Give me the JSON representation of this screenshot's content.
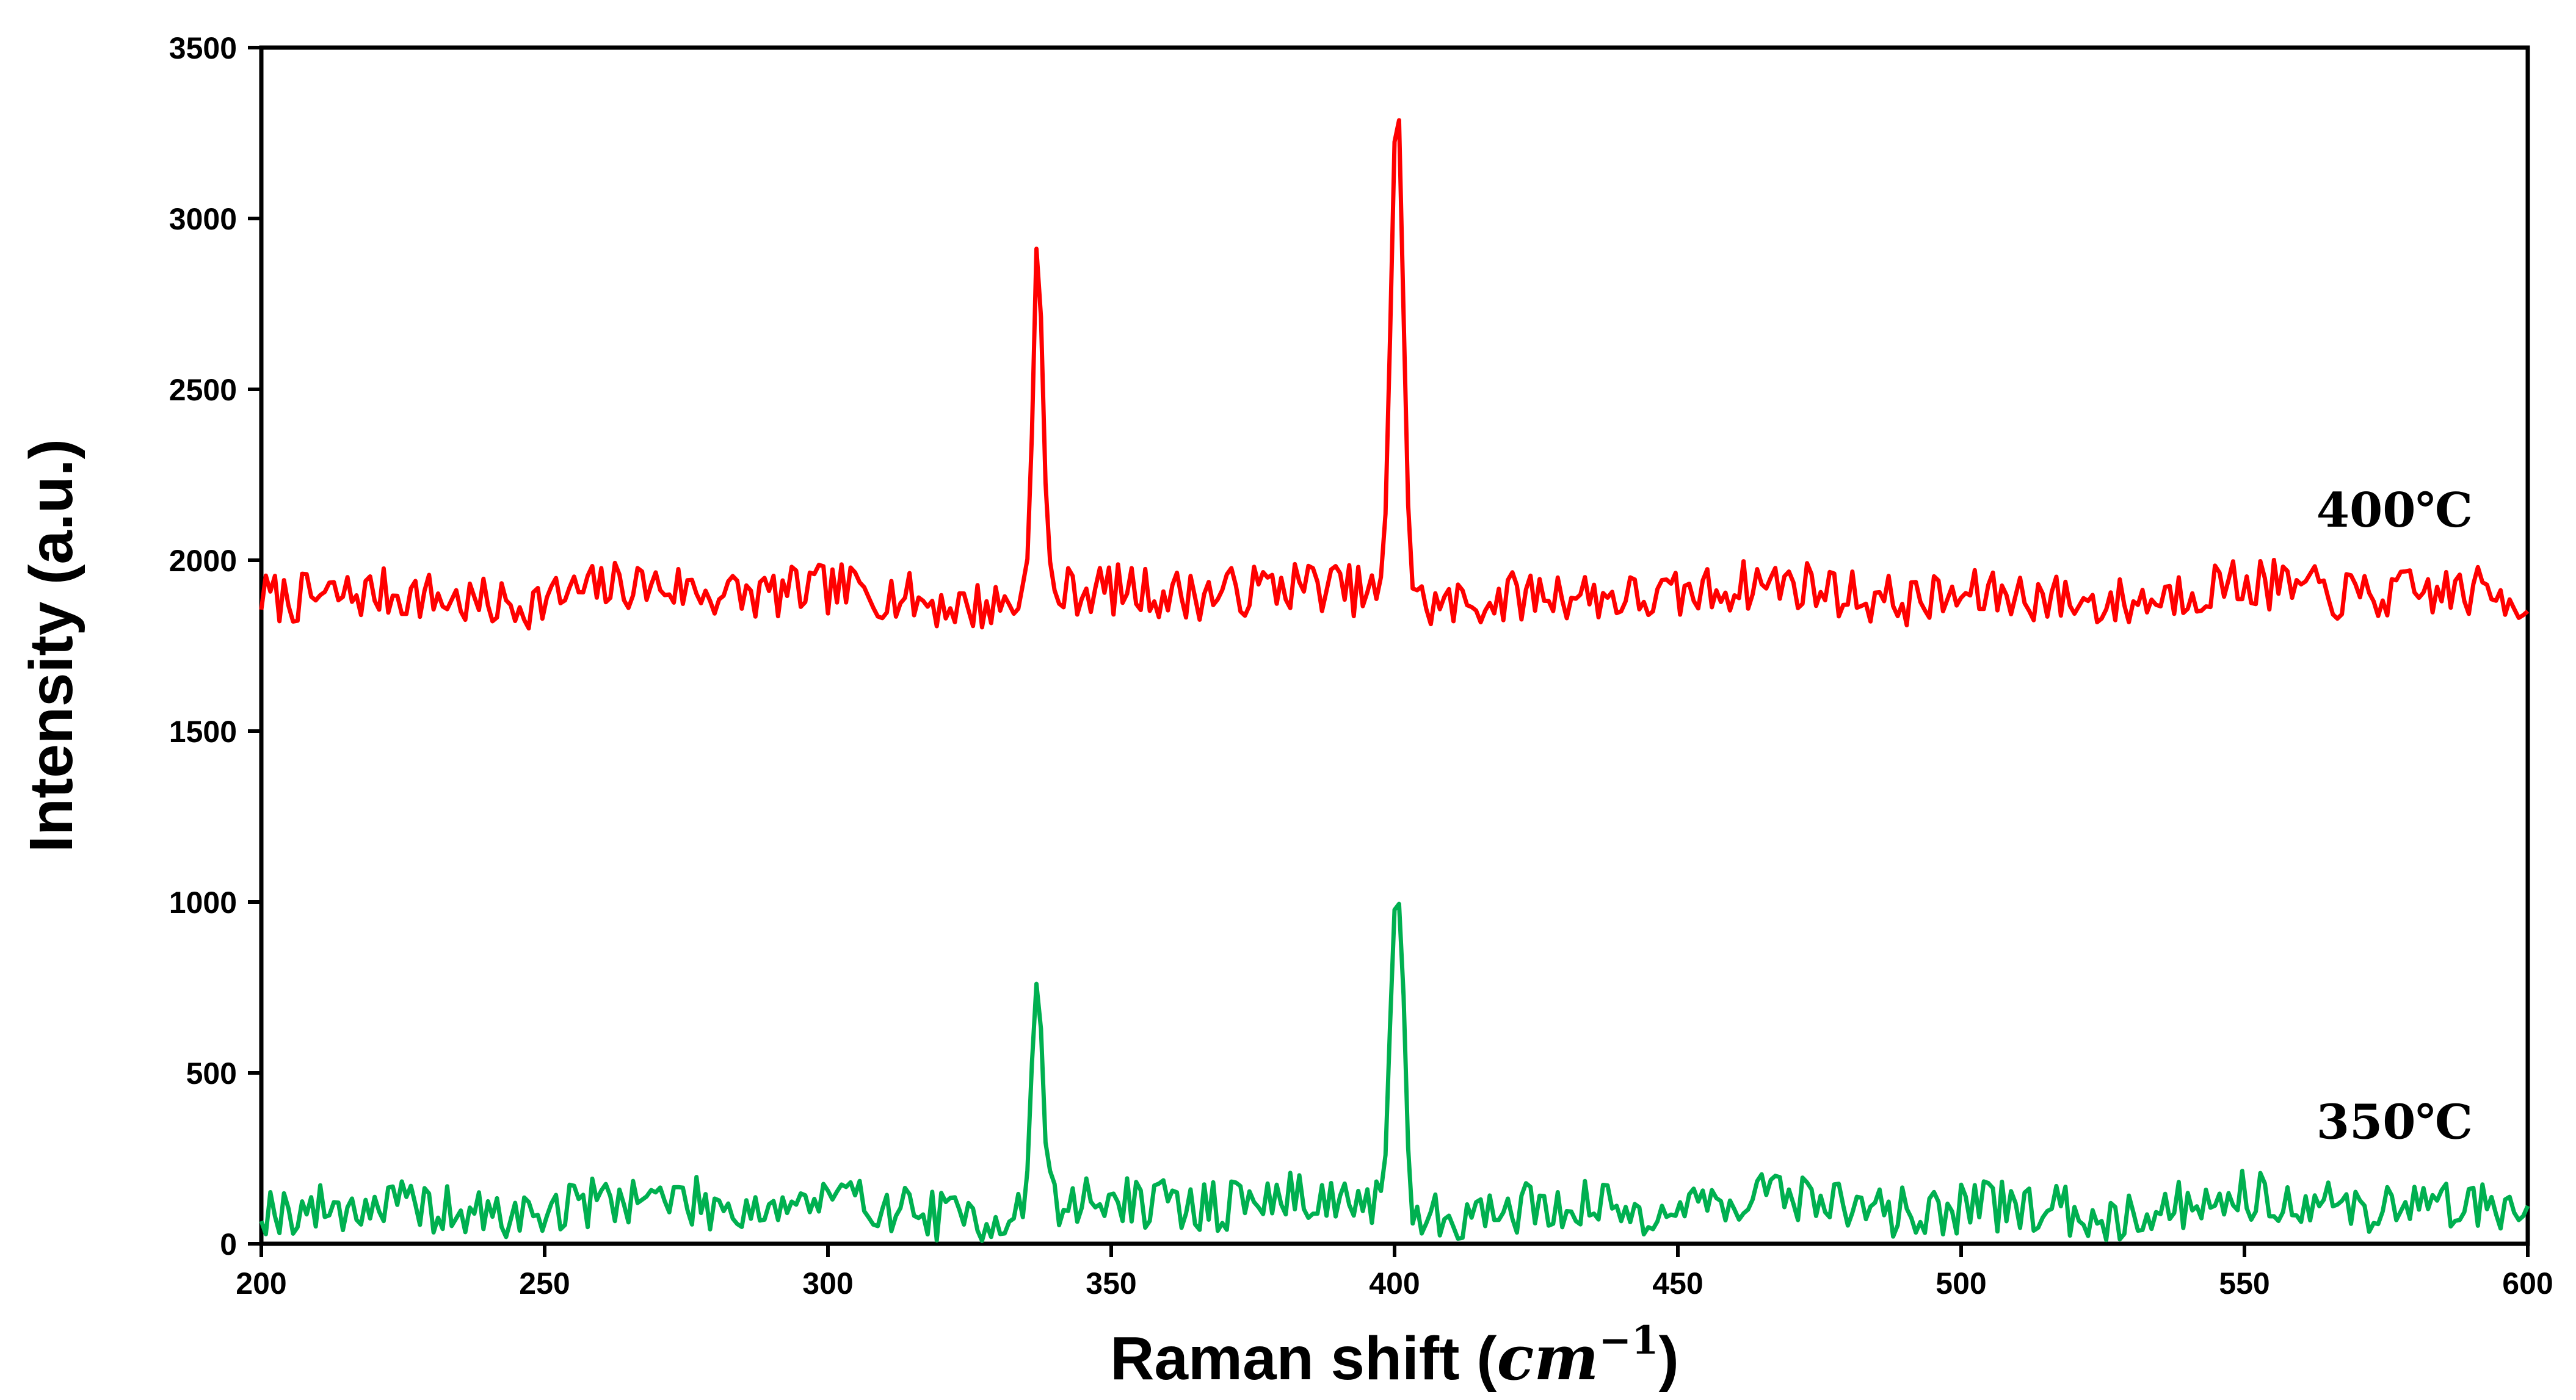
{
  "chart_data": {
    "type": "line",
    "title": "",
    "xlabel": "Raman shift (",
    "xlabel_math": "cm",
    "xlabel_exp": "−1",
    "xlabel_close": ")",
    "ylabel": "Intensity (a.u.)",
    "xlim": [
      200,
      600
    ],
    "ylim": [
      0,
      3500
    ],
    "xticks": [
      200,
      250,
      300,
      350,
      400,
      450,
      500,
      550,
      600
    ],
    "yticks": [
      0,
      500,
      1000,
      1500,
      2000,
      2500,
      3000,
      3500
    ],
    "grid": false,
    "legend": "none",
    "series": [
      {
        "name": "400℃",
        "color": "#ff0000",
        "baseline": 1900,
        "noise": 75,
        "seed": 7,
        "peaks": [
          {
            "x": 337,
            "y": 2900,
            "width": 1.3
          },
          {
            "x": 400.5,
            "y": 3400,
            "width": 1.5
          }
        ]
      },
      {
        "name": "350℃",
        "color": "#00b050",
        "baseline": 110,
        "noise": 75,
        "seed": 19,
        "peaks": [
          {
            "x": 337,
            "y": 800,
            "width": 1.3
          },
          {
            "x": 400.5,
            "y": 1100,
            "width": 1.5
          }
        ]
      }
    ]
  }
}
